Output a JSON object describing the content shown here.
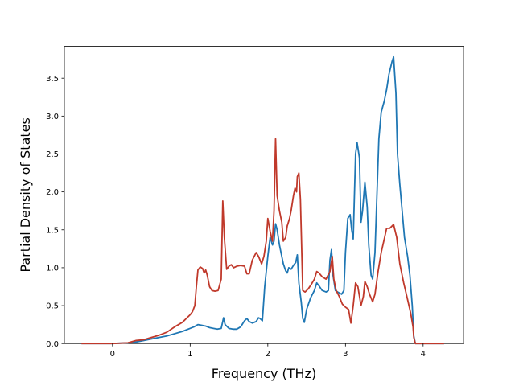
{
  "chart_data": {
    "type": "line",
    "xlabel": "Frequency (THz)",
    "ylabel": "Partial Density of States",
    "xlim": [
      -0.62,
      4.52
    ],
    "ylim": [
      0.0,
      3.92
    ],
    "xticks": [
      0,
      1,
      2,
      3,
      4
    ],
    "yticks": [
      0.0,
      0.5,
      1.0,
      1.5,
      2.0,
      2.5,
      3.0,
      3.5
    ],
    "ytick_labels": [
      "0.0",
      "0.5",
      "1.0",
      "1.5",
      "2.0",
      "2.5",
      "3.0",
      "3.5"
    ],
    "grid": false,
    "series": [
      {
        "color": "#1f77b4",
        "points": [
          [
            -0.4,
            0.0
          ],
          [
            0.0,
            0.0
          ],
          [
            0.2,
            0.01
          ],
          [
            0.3,
            0.02
          ],
          [
            0.4,
            0.04
          ],
          [
            0.5,
            0.06
          ],
          [
            0.6,
            0.08
          ],
          [
            0.7,
            0.1
          ],
          [
            0.8,
            0.13
          ],
          [
            0.9,
            0.16
          ],
          [
            1.0,
            0.2
          ],
          [
            1.05,
            0.22
          ],
          [
            1.1,
            0.25
          ],
          [
            1.15,
            0.24
          ],
          [
            1.2,
            0.23
          ],
          [
            1.25,
            0.21
          ],
          [
            1.3,
            0.2
          ],
          [
            1.35,
            0.19
          ],
          [
            1.4,
            0.2
          ],
          [
            1.43,
            0.34
          ],
          [
            1.45,
            0.25
          ],
          [
            1.5,
            0.2
          ],
          [
            1.55,
            0.19
          ],
          [
            1.6,
            0.19
          ],
          [
            1.65,
            0.22
          ],
          [
            1.7,
            0.3
          ],
          [
            1.73,
            0.33
          ],
          [
            1.76,
            0.29
          ],
          [
            1.8,
            0.27
          ],
          [
            1.85,
            0.29
          ],
          [
            1.88,
            0.34
          ],
          [
            1.9,
            0.33
          ],
          [
            1.93,
            0.3
          ],
          [
            1.96,
            0.75
          ],
          [
            2.0,
            1.15
          ],
          [
            2.03,
            1.4
          ],
          [
            2.06,
            1.3
          ],
          [
            2.08,
            1.35
          ],
          [
            2.1,
            1.58
          ],
          [
            2.12,
            1.5
          ],
          [
            2.15,
            1.3
          ],
          [
            2.18,
            1.15
          ],
          [
            2.2,
            1.05
          ],
          [
            2.23,
            0.96
          ],
          [
            2.25,
            0.93
          ],
          [
            2.27,
            1.0
          ],
          [
            2.3,
            0.98
          ],
          [
            2.33,
            1.03
          ],
          [
            2.36,
            1.07
          ],
          [
            2.38,
            1.17
          ],
          [
            2.4,
            0.8
          ],
          [
            2.43,
            0.55
          ],
          [
            2.45,
            0.33
          ],
          [
            2.47,
            0.28
          ],
          [
            2.5,
            0.45
          ],
          [
            2.55,
            0.6
          ],
          [
            2.6,
            0.7
          ],
          [
            2.63,
            0.8
          ],
          [
            2.66,
            0.76
          ],
          [
            2.7,
            0.7
          ],
          [
            2.75,
            0.68
          ],
          [
            2.78,
            0.7
          ],
          [
            2.8,
            1.1
          ],
          [
            2.82,
            1.24
          ],
          [
            2.84,
            0.9
          ],
          [
            2.87,
            0.7
          ],
          [
            2.9,
            0.68
          ],
          [
            2.95,
            0.65
          ],
          [
            2.98,
            0.7
          ],
          [
            3.0,
            1.2
          ],
          [
            3.03,
            1.65
          ],
          [
            3.06,
            1.7
          ],
          [
            3.08,
            1.5
          ],
          [
            3.1,
            1.38
          ],
          [
            3.13,
            2.5
          ],
          [
            3.15,
            2.65
          ],
          [
            3.18,
            2.45
          ],
          [
            3.2,
            1.6
          ],
          [
            3.22,
            1.75
          ],
          [
            3.25,
            2.13
          ],
          [
            3.28,
            1.8
          ],
          [
            3.3,
            1.3
          ],
          [
            3.33,
            0.9
          ],
          [
            3.35,
            0.85
          ],
          [
            3.38,
            1.2
          ],
          [
            3.4,
            1.8
          ],
          [
            3.43,
            2.7
          ],
          [
            3.46,
            3.05
          ],
          [
            3.5,
            3.2
          ],
          [
            3.53,
            3.35
          ],
          [
            3.56,
            3.55
          ],
          [
            3.6,
            3.72
          ],
          [
            3.62,
            3.78
          ],
          [
            3.65,
            3.3
          ],
          [
            3.67,
            2.5
          ],
          [
            3.7,
            2.1
          ],
          [
            3.73,
            1.75
          ],
          [
            3.76,
            1.4
          ],
          [
            3.8,
            1.15
          ],
          [
            3.83,
            0.9
          ],
          [
            3.86,
            0.5
          ],
          [
            3.88,
            0.1
          ],
          [
            3.9,
            0.0
          ],
          [
            4.0,
            0.0
          ],
          [
            4.27,
            0.0
          ]
        ]
      },
      {
        "color": "#c0392b",
        "points": [
          [
            -0.4,
            0.0
          ],
          [
            0.0,
            0.0
          ],
          [
            0.2,
            0.01
          ],
          [
            0.3,
            0.04
          ],
          [
            0.4,
            0.05
          ],
          [
            0.5,
            0.08
          ],
          [
            0.6,
            0.11
          ],
          [
            0.7,
            0.15
          ],
          [
            0.8,
            0.22
          ],
          [
            0.9,
            0.28
          ],
          [
            0.95,
            0.33
          ],
          [
            1.0,
            0.38
          ],
          [
            1.03,
            0.42
          ],
          [
            1.06,
            0.5
          ],
          [
            1.08,
            0.75
          ],
          [
            1.1,
            0.97
          ],
          [
            1.13,
            1.01
          ],
          [
            1.16,
            0.99
          ],
          [
            1.18,
            0.93
          ],
          [
            1.2,
            0.97
          ],
          [
            1.22,
            0.9
          ],
          [
            1.25,
            0.75
          ],
          [
            1.28,
            0.7
          ],
          [
            1.32,
            0.69
          ],
          [
            1.36,
            0.7
          ],
          [
            1.4,
            0.85
          ],
          [
            1.42,
            1.88
          ],
          [
            1.44,
            1.4
          ],
          [
            1.47,
            0.98
          ],
          [
            1.5,
            1.02
          ],
          [
            1.53,
            1.04
          ],
          [
            1.56,
            1.0
          ],
          [
            1.6,
            1.02
          ],
          [
            1.65,
            1.03
          ],
          [
            1.7,
            1.02
          ],
          [
            1.73,
            0.92
          ],
          [
            1.76,
            0.92
          ],
          [
            1.8,
            1.1
          ],
          [
            1.85,
            1.2
          ],
          [
            1.88,
            1.15
          ],
          [
            1.92,
            1.05
          ],
          [
            1.95,
            1.15
          ],
          [
            1.98,
            1.35
          ],
          [
            2.0,
            1.65
          ],
          [
            2.03,
            1.48
          ],
          [
            2.06,
            1.35
          ],
          [
            2.08,
            1.75
          ],
          [
            2.1,
            2.7
          ],
          [
            2.12,
            1.95
          ],
          [
            2.15,
            1.75
          ],
          [
            2.18,
            1.6
          ],
          [
            2.2,
            1.35
          ],
          [
            2.23,
            1.4
          ],
          [
            2.25,
            1.55
          ],
          [
            2.28,
            1.65
          ],
          [
            2.3,
            1.75
          ],
          [
            2.33,
            1.95
          ],
          [
            2.35,
            2.05
          ],
          [
            2.37,
            2.0
          ],
          [
            2.38,
            2.2
          ],
          [
            2.4,
            2.25
          ],
          [
            2.42,
            1.9
          ],
          [
            2.45,
            0.7
          ],
          [
            2.48,
            0.68
          ],
          [
            2.52,
            0.72
          ],
          [
            2.56,
            0.78
          ],
          [
            2.6,
            0.85
          ],
          [
            2.63,
            0.95
          ],
          [
            2.66,
            0.93
          ],
          [
            2.7,
            0.88
          ],
          [
            2.75,
            0.85
          ],
          [
            2.8,
            0.95
          ],
          [
            2.83,
            1.15
          ],
          [
            2.85,
            0.85
          ],
          [
            2.88,
            0.7
          ],
          [
            2.92,
            0.62
          ],
          [
            2.96,
            0.52
          ],
          [
            3.0,
            0.48
          ],
          [
            3.04,
            0.45
          ],
          [
            3.07,
            0.27
          ],
          [
            3.1,
            0.5
          ],
          [
            3.13,
            0.8
          ],
          [
            3.16,
            0.75
          ],
          [
            3.2,
            0.5
          ],
          [
            3.23,
            0.62
          ],
          [
            3.25,
            0.82
          ],
          [
            3.28,
            0.75
          ],
          [
            3.31,
            0.65
          ],
          [
            3.35,
            0.55
          ],
          [
            3.38,
            0.65
          ],
          [
            3.42,
            0.95
          ],
          [
            3.46,
            1.2
          ],
          [
            3.5,
            1.38
          ],
          [
            3.53,
            1.52
          ],
          [
            3.57,
            1.52
          ],
          [
            3.6,
            1.55
          ],
          [
            3.62,
            1.57
          ],
          [
            3.66,
            1.4
          ],
          [
            3.7,
            1.05
          ],
          [
            3.75,
            0.8
          ],
          [
            3.8,
            0.58
          ],
          [
            3.84,
            0.4
          ],
          [
            3.87,
            0.22
          ],
          [
            3.88,
            0.08
          ],
          [
            3.9,
            0.0
          ],
          [
            4.0,
            0.0
          ],
          [
            4.27,
            0.0
          ]
        ]
      }
    ]
  }
}
